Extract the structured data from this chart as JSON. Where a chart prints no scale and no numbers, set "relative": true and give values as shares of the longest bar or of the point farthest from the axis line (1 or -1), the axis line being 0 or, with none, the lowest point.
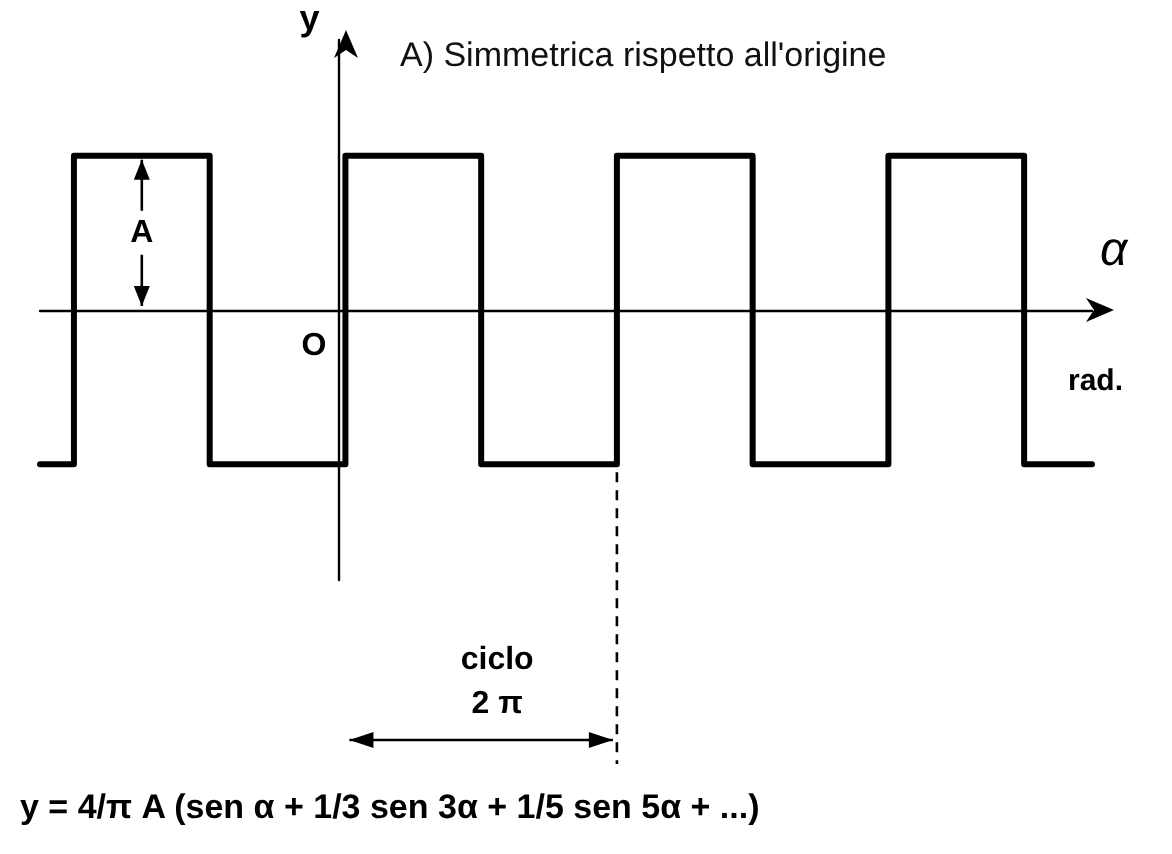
{
  "chart_data": {
    "type": "step",
    "relative": true,
    "title": "A) Simmetrica rispetto all'origine",
    "xlabel": "α",
    "ylabel": "y",
    "categories": [
      null,
      null,
      null,
      null,
      null,
      null,
      null,
      null,
      null,
      null,
      null,
      null,
      null,
      null,
      null,
      null,
      null,
      null,
      null,
      null,
      null,
      null,
      null,
      null,
      null,
      null,
      null,
      null,
      null,
      null,
      null,
      null
    ],
    "series": [
      {
        "color": "#000000",
        "values": [
          -1,
          1,
          1,
          1,
          1,
          -1,
          -1,
          -1,
          -1,
          1,
          1,
          1,
          1,
          -1,
          -1,
          -1,
          -1,
          1,
          1,
          1,
          1,
          -1,
          -1,
          -1,
          -1,
          1,
          1,
          1,
          1,
          -1,
          -1,
          -1
        ]
      }
    ],
    "annotations": [
      "A",
      "O",
      "rad.",
      "ciclo",
      "2 π",
      "y = 4/π A (sen α + 1/3 sen 3α + 1/5 sen 5α + ...)"
    ],
    "grid": false,
    "marker": "none",
    "line_style": "solid"
  }
}
